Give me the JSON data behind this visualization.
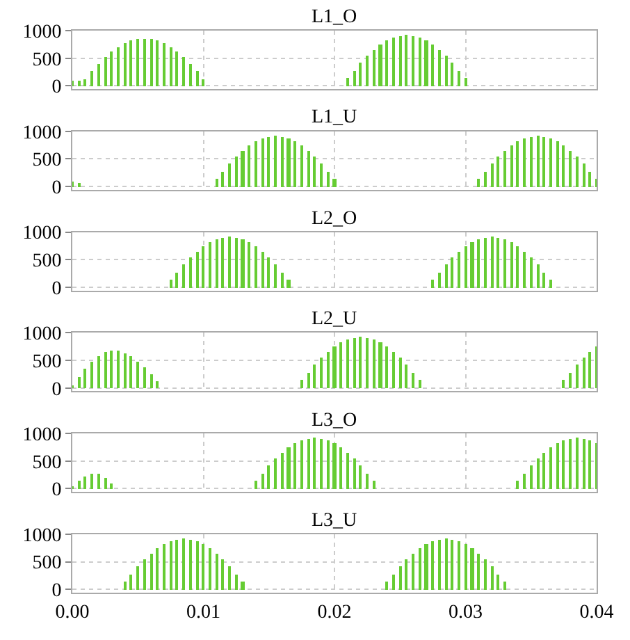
{
  "chart_data": [
    {
      "type": "bar",
      "title": "L1_O",
      "color": "#66cc33",
      "xlim": [
        0,
        0.04
      ],
      "ylim": [
        -60,
        1000
      ],
      "yticks": [
        0,
        500,
        1000
      ],
      "grid": true,
      "tick_labels": "y",
      "xticks": [
        0,
        0.01,
        0.02,
        0.03,
        0.04
      ],
      "x": [
        0,
        0.0005,
        0.001,
        0.0015,
        0.002,
        0.0025,
        0.003,
        0.0035,
        0.004,
        0.0045,
        0.005,
        0.0055,
        0.006,
        0.0065,
        0.007,
        0.0075,
        0.008,
        0.0085,
        0.009,
        0.0095,
        0.01,
        0.0105,
        0.011,
        0.0115,
        0.012,
        0.0125,
        0.013,
        0.0135,
        0.014,
        0.0145,
        0.015,
        0.0155,
        0.016,
        0.0165,
        0.017,
        0.0175,
        0.018,
        0.0185,
        0.019,
        0.0195,
        0.02,
        0.0205,
        0.021,
        0.0215,
        0.022,
        0.0225,
        0.023,
        0.0235,
        0.024,
        0.0245,
        0.025,
        0.0255,
        0.026,
        0.0265,
        0.027,
        0.0275,
        0.028,
        0.0285,
        0.029,
        0.0295,
        0.03,
        0.0305,
        0.031,
        0.0315,
        0.032,
        0.0325,
        0.033,
        0.0335,
        0.034,
        0.0345,
        0.035,
        0.0355,
        0.036,
        0.0365,
        0.037,
        0.0375,
        0.038,
        0.0385,
        0.039,
        0.0395,
        0.04
      ],
      "values": [
        100,
        100,
        130,
        270,
        390,
        510,
        610,
        700,
        770,
        820,
        850,
        860,
        850,
        820,
        770,
        700,
        610,
        510,
        390,
        270,
        130,
        0,
        0,
        0,
        0,
        0,
        0,
        0,
        0,
        0,
        0,
        0,
        0,
        0,
        0,
        0,
        0,
        0,
        0,
        0,
        0,
        0,
        140,
        280,
        420,
        540,
        650,
        740,
        820,
        870,
        910,
        920,
        910,
        870,
        820,
        740,
        650,
        540,
        420,
        280,
        140,
        0,
        0,
        0,
        0,
        0,
        0,
        0,
        0,
        0,
        0,
        0,
        0,
        0,
        0,
        0,
        0,
        0,
        0,
        0,
        0
      ]
    },
    {
      "type": "bar",
      "title": "L1_U",
      "color": "#66cc33",
      "xlim": [
        0,
        0.04
      ],
      "ylim": [
        -60,
        1000
      ],
      "yticks": [
        0,
        500,
        1000
      ],
      "grid": true,
      "tick_labels": "y",
      "xticks": [
        0,
        0.01,
        0.02,
        0.03,
        0.04
      ],
      "x": [
        0,
        0.0005,
        0.001,
        0.0015,
        0.002,
        0.0025,
        0.003,
        0.0035,
        0.004,
        0.0045,
        0.005,
        0.0055,
        0.006,
        0.0065,
        0.007,
        0.0075,
        0.008,
        0.0085,
        0.009,
        0.0095,
        0.01,
        0.0105,
        0.011,
        0.0115,
        0.012,
        0.0125,
        0.013,
        0.0135,
        0.014,
        0.0145,
        0.015,
        0.0155,
        0.016,
        0.0165,
        0.017,
        0.0175,
        0.018,
        0.0185,
        0.019,
        0.0195,
        0.02,
        0.0205,
        0.021,
        0.0215,
        0.022,
        0.0225,
        0.023,
        0.0235,
        0.024,
        0.0245,
        0.025,
        0.0255,
        0.026,
        0.0265,
        0.027,
        0.0275,
        0.028,
        0.0285,
        0.029,
        0.0295,
        0.03,
        0.0305,
        0.031,
        0.0315,
        0.032,
        0.0325,
        0.033,
        0.0335,
        0.034,
        0.0345,
        0.035,
        0.0355,
        0.036,
        0.0365,
        0.037,
        0.0375,
        0.038,
        0.0385,
        0.039,
        0.0395,
        0.04
      ],
      "values": [
        100,
        60,
        0,
        0,
        0,
        0,
        0,
        0,
        0,
        0,
        0,
        0,
        0,
        0,
        0,
        0,
        0,
        0,
        0,
        0,
        0,
        0,
        140,
        280,
        420,
        540,
        650,
        740,
        820,
        870,
        910,
        920,
        910,
        870,
        820,
        740,
        650,
        540,
        420,
        280,
        140,
        0,
        0,
        0,
        0,
        0,
        0,
        0,
        0,
        0,
        0,
        0,
        0,
        0,
        0,
        0,
        0,
        0,
        0,
        0,
        0,
        0,
        140,
        280,
        420,
        540,
        650,
        740,
        820,
        870,
        910,
        920,
        910,
        870,
        820,
        740,
        650,
        540,
        420,
        280,
        140
      ]
    },
    {
      "type": "bar",
      "title": "L2_O",
      "color": "#66cc33",
      "xlim": [
        0,
        0.04
      ],
      "ylim": [
        -60,
        1000
      ],
      "yticks": [
        0,
        500,
        1000
      ],
      "grid": true,
      "tick_labels": "y",
      "xticks": [
        0,
        0.01,
        0.02,
        0.03,
        0.04
      ],
      "x": [
        0,
        0.0005,
        0.001,
        0.0015,
        0.002,
        0.0025,
        0.003,
        0.0035,
        0.004,
        0.0045,
        0.005,
        0.0055,
        0.006,
        0.0065,
        0.007,
        0.0075,
        0.008,
        0.0085,
        0.009,
        0.0095,
        0.01,
        0.0105,
        0.011,
        0.0115,
        0.012,
        0.0125,
        0.013,
        0.0135,
        0.014,
        0.0145,
        0.015,
        0.0155,
        0.016,
        0.0165,
        0.017,
        0.0175,
        0.018,
        0.0185,
        0.019,
        0.0195,
        0.02,
        0.0205,
        0.021,
        0.0215,
        0.022,
        0.0225,
        0.023,
        0.0235,
        0.024,
        0.0245,
        0.025,
        0.0255,
        0.026,
        0.0265,
        0.027,
        0.0275,
        0.028,
        0.0285,
        0.029,
        0.0295,
        0.03,
        0.0305,
        0.031,
        0.0315,
        0.032,
        0.0325,
        0.033,
        0.0335,
        0.034,
        0.0345,
        0.035,
        0.0355,
        0.036,
        0.0365,
        0.037,
        0.0375,
        0.038,
        0.0385,
        0.039,
        0.0395,
        0.04
      ],
      "values": [
        0,
        0,
        0,
        0,
        0,
        0,
        0,
        0,
        0,
        0,
        0,
        0,
        0,
        0,
        0,
        140,
        280,
        420,
        540,
        650,
        740,
        820,
        870,
        910,
        920,
        910,
        870,
        820,
        740,
        650,
        540,
        420,
        280,
        140,
        0,
        0,
        0,
        0,
        0,
        0,
        0,
        0,
        0,
        0,
        0,
        0,
        0,
        0,
        0,
        0,
        0,
        0,
        0,
        0,
        0,
        140,
        280,
        420,
        540,
        650,
        740,
        820,
        870,
        910,
        920,
        910,
        870,
        820,
        740,
        650,
        540,
        420,
        280,
        140,
        0,
        0,
        0,
        0,
        0,
        0,
        0
      ]
    },
    {
      "type": "bar",
      "title": "L2_U",
      "color": "#66cc33",
      "xlim": [
        0,
        0.04
      ],
      "ylim": [
        -60,
        1000
      ],
      "yticks": [
        0,
        500,
        1000
      ],
      "grid": true,
      "tick_labels": "y",
      "xticks": [
        0,
        0.01,
        0.02,
        0.03,
        0.04
      ],
      "x": [
        0,
        0.0005,
        0.001,
        0.0015,
        0.002,
        0.0025,
        0.003,
        0.0035,
        0.004,
        0.0045,
        0.005,
        0.0055,
        0.006,
        0.0065,
        0.007,
        0.0075,
        0.008,
        0.0085,
        0.009,
        0.0095,
        0.01,
        0.0105,
        0.011,
        0.0115,
        0.012,
        0.0125,
        0.013,
        0.0135,
        0.014,
        0.0145,
        0.015,
        0.0155,
        0.016,
        0.0165,
        0.017,
        0.0175,
        0.018,
        0.0185,
        0.019,
        0.0195,
        0.02,
        0.0205,
        0.021,
        0.0215,
        0.022,
        0.0225,
        0.023,
        0.0235,
        0.024,
        0.0245,
        0.025,
        0.0255,
        0.026,
        0.0265,
        0.027,
        0.0275,
        0.028,
        0.0285,
        0.029,
        0.0295,
        0.03,
        0.0305,
        0.031,
        0.0315,
        0.032,
        0.0325,
        0.033,
        0.0335,
        0.034,
        0.0345,
        0.035,
        0.0355,
        0.036,
        0.0365,
        0.037,
        0.0375,
        0.038,
        0.0385,
        0.039,
        0.0395,
        0.04
      ],
      "values": [
        30,
        200,
        350,
        480,
        580,
        650,
        680,
        670,
        630,
        560,
        470,
        360,
        240,
        120,
        0,
        0,
        0,
        0,
        0,
        0,
        0,
        0,
        0,
        0,
        0,
        0,
        0,
        0,
        0,
        0,
        0,
        0,
        0,
        0,
        0,
        140,
        280,
        420,
        540,
        650,
        740,
        820,
        870,
        910,
        920,
        910,
        870,
        820,
        740,
        650,
        540,
        420,
        280,
        140,
        0,
        0,
        0,
        0,
        0,
        0,
        0,
        0,
        0,
        0,
        0,
        0,
        0,
        0,
        0,
        0,
        0,
        0,
        0,
        0,
        0,
        140,
        280,
        420,
        540,
        650,
        740
      ]
    },
    {
      "type": "bar",
      "title": "L3_O",
      "color": "#66cc33",
      "xlim": [
        0,
        0.04
      ],
      "ylim": [
        -60,
        1000
      ],
      "yticks": [
        0,
        500,
        1000
      ],
      "grid": true,
      "tick_labels": "y",
      "xticks": [
        0,
        0.01,
        0.02,
        0.03,
        0.04
      ],
      "x": [
        0,
        0.0005,
        0.001,
        0.0015,
        0.002,
        0.0025,
        0.003,
        0.0035,
        0.004,
        0.0045,
        0.005,
        0.0055,
        0.006,
        0.0065,
        0.007,
        0.0075,
        0.008,
        0.0085,
        0.009,
        0.0095,
        0.01,
        0.0105,
        0.011,
        0.0115,
        0.012,
        0.0125,
        0.013,
        0.0135,
        0.014,
        0.0145,
        0.015,
        0.0155,
        0.016,
        0.0165,
        0.017,
        0.0175,
        0.018,
        0.0185,
        0.019,
        0.0195,
        0.02,
        0.0205,
        0.021,
        0.0215,
        0.022,
        0.0225,
        0.023,
        0.0235,
        0.024,
        0.0245,
        0.025,
        0.0255,
        0.026,
        0.0265,
        0.027,
        0.0275,
        0.028,
        0.0285,
        0.029,
        0.0295,
        0.03,
        0.0305,
        0.031,
        0.0315,
        0.032,
        0.0325,
        0.033,
        0.0335,
        0.034,
        0.0345,
        0.035,
        0.0355,
        0.036,
        0.0365,
        0.037,
        0.0375,
        0.038,
        0.0385,
        0.039,
        0.0395,
        0.04
      ],
      "values": [
        50,
        150,
        230,
        280,
        270,
        200,
        100,
        0,
        0,
        0,
        0,
        0,
        0,
        0,
        0,
        0,
        0,
        0,
        0,
        0,
        0,
        0,
        0,
        0,
        0,
        0,
        0,
        0,
        140,
        280,
        420,
        540,
        650,
        740,
        820,
        870,
        910,
        920,
        910,
        870,
        820,
        740,
        650,
        540,
        420,
        280,
        140,
        0,
        0,
        0,
        0,
        0,
        0,
        0,
        0,
        0,
        0,
        0,
        0,
        0,
        0,
        0,
        0,
        0,
        0,
        0,
        0,
        0,
        140,
        280,
        420,
        540,
        650,
        740,
        820,
        870,
        910,
        920,
        910,
        870,
        820
      ]
    },
    {
      "type": "bar",
      "title": "L3_U",
      "color": "#66cc33",
      "xlim": [
        0,
        0.04
      ],
      "ylim": [
        -60,
        1000
      ],
      "yticks": [
        0,
        500,
        1000
      ],
      "grid": true,
      "xticks": [
        {
          "value": 0,
          "label": "0.00"
        },
        {
          "value": 0.01,
          "label": "0.01"
        },
        {
          "value": 0.02,
          "label": "0.02"
        },
        {
          "value": 0.03,
          "label": "0.03"
        },
        {
          "value": 0.04,
          "label": "0.04"
        }
      ],
      "x": [
        0,
        0.0005,
        0.001,
        0.0015,
        0.002,
        0.0025,
        0.003,
        0.0035,
        0.004,
        0.0045,
        0.005,
        0.0055,
        0.006,
        0.0065,
        0.007,
        0.0075,
        0.008,
        0.0085,
        0.009,
        0.0095,
        0.01,
        0.0105,
        0.011,
        0.0115,
        0.012,
        0.0125,
        0.013,
        0.0135,
        0.014,
        0.0145,
        0.015,
        0.0155,
        0.016,
        0.0165,
        0.017,
        0.0175,
        0.018,
        0.0185,
        0.019,
        0.0195,
        0.02,
        0.0205,
        0.021,
        0.0215,
        0.022,
        0.0225,
        0.023,
        0.0235,
        0.024,
        0.0245,
        0.025,
        0.0255,
        0.026,
        0.0265,
        0.027,
        0.0275,
        0.028,
        0.0285,
        0.029,
        0.0295,
        0.03,
        0.0305,
        0.031,
        0.0315,
        0.032,
        0.0325,
        0.033,
        0.0335,
        0.034,
        0.0345,
        0.035,
        0.0355,
        0.036,
        0.0365,
        0.037,
        0.0375,
        0.038,
        0.0385,
        0.039,
        0.0395,
        0.04
      ],
      "values": [
        0,
        0,
        0,
        0,
        0,
        0,
        0,
        0,
        140,
        280,
        420,
        540,
        650,
        740,
        820,
        870,
        910,
        920,
        910,
        870,
        820,
        740,
        650,
        540,
        420,
        280,
        140,
        0,
        0,
        0,
        0,
        0,
        0,
        0,
        0,
        0,
        0,
        0,
        0,
        0,
        0,
        0,
        0,
        0,
        0,
        0,
        0,
        0,
        140,
        280,
        420,
        540,
        650,
        740,
        820,
        870,
        910,
        920,
        910,
        870,
        820,
        740,
        650,
        540,
        420,
        280,
        140,
        0,
        0,
        0,
        0,
        0,
        0,
        0,
        0,
        0,
        0,
        0,
        0,
        0,
        0
      ]
    }
  ]
}
